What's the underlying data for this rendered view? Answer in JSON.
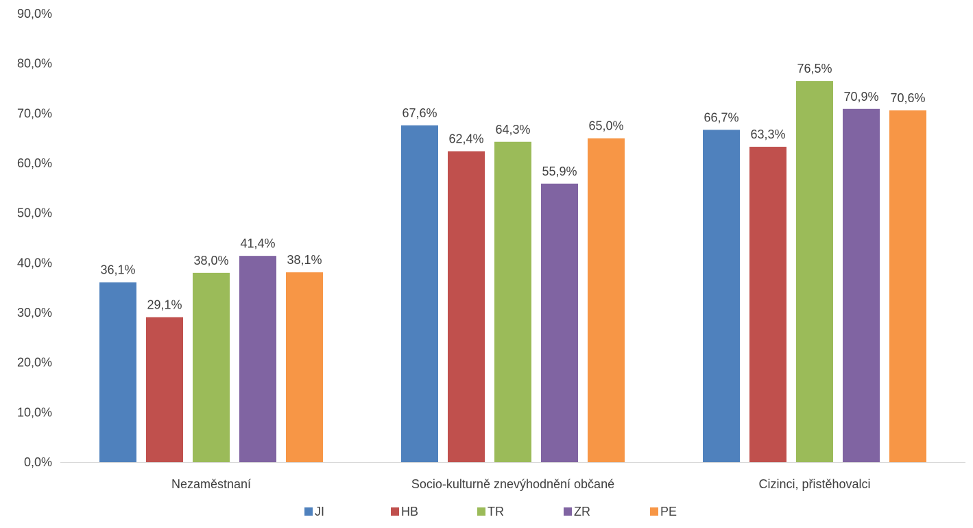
{
  "chart_data": {
    "type": "bar",
    "categories": [
      "Nezaměstnaní",
      "Socio-kulturně znevýhodnění občané",
      "Cizinci, přistěhovalci"
    ],
    "series": [
      {
        "name": "JI",
        "color": "#4F81BD",
        "values": [
          36.1,
          67.6,
          66.7
        ],
        "labels": [
          "36,1%",
          "67,6%",
          "66,7%"
        ]
      },
      {
        "name": "HB",
        "color": "#C0504D",
        "values": [
          29.1,
          62.4,
          63.3
        ],
        "labels": [
          "29,1%",
          "62,4%",
          "63,3%"
        ]
      },
      {
        "name": "TR",
        "color": "#9BBB59",
        "values": [
          38.0,
          64.3,
          76.5
        ],
        "labels": [
          "38,0%",
          "64,3%",
          "76,5%"
        ]
      },
      {
        "name": "ZR",
        "color": "#8064A2",
        "values": [
          41.4,
          55.9,
          70.9
        ],
        "labels": [
          "41,4%",
          "55,9%",
          "70,9%"
        ]
      },
      {
        "name": "PE",
        "color": "#F79646",
        "values": [
          38.1,
          65.0,
          70.6
        ],
        "labels": [
          "38,1%",
          "65,0%",
          "70,6%"
        ]
      }
    ],
    "yticks": [
      "0,0%",
      "10,0%",
      "20,0%",
      "30,0%",
      "40,0%",
      "50,0%",
      "60,0%",
      "70,0%",
      "80,0%",
      "90,0%"
    ],
    "ylim": [
      0,
      90
    ],
    "title": "",
    "xlabel": "",
    "ylabel": "",
    "grid": false,
    "legend_position": "bottom"
  }
}
